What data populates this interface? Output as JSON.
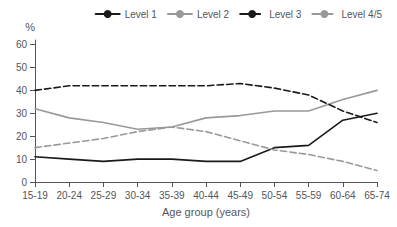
{
  "chart_data": {
    "type": "line",
    "xlabel": "Age group (years)",
    "ylabel": "%",
    "categories": [
      "15-19",
      "20-24",
      "25-29",
      "30-34",
      "35-39",
      "40-44",
      "45-49",
      "50-54",
      "55-59",
      "60-64",
      "65-74"
    ],
    "series": [
      {
        "name": "Level 1",
        "color": "#1a1a1a",
        "line_style": "solid",
        "values": [
          11,
          10,
          9,
          10,
          10,
          9,
          9,
          15,
          16,
          27,
          30
        ]
      },
      {
        "name": "Level 2",
        "color": "#999999",
        "line_style": "solid",
        "values": [
          32,
          28,
          26,
          23,
          24,
          28,
          29,
          31,
          31,
          36,
          40
        ]
      },
      {
        "name": "Level 3",
        "color": "#1a1a1a",
        "line_style": "dashed",
        "values": [
          40,
          42,
          42,
          42,
          42,
          42,
          43,
          41,
          38,
          31,
          26
        ]
      },
      {
        "name": "Level 4/5",
        "color": "#999999",
        "line_style": "dashed",
        "values": [
          15,
          17,
          19,
          22,
          24,
          22,
          18,
          14,
          12,
          9,
          5
        ]
      }
    ],
    "ylim": [
      0,
      62
    ],
    "yticks": [
      0,
      10,
      20,
      30,
      40,
      50,
      60
    ],
    "grid": false,
    "legend": "upper right"
  }
}
